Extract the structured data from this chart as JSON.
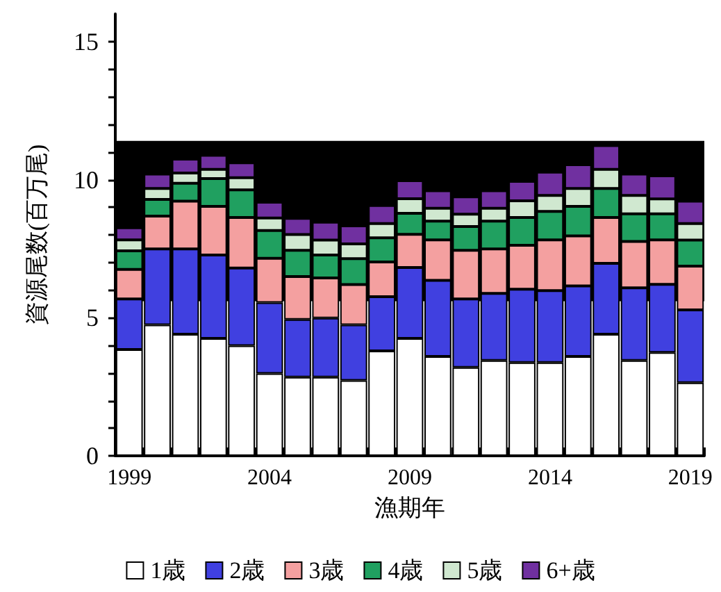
{
  "chart_data": {
    "type": "bar",
    "stacked": true,
    "xlabel": "漁期年",
    "ylabel": "資源尾数(百万尾)",
    "categories": [
      "1999",
      null,
      null,
      null,
      null,
      "2004",
      null,
      null,
      null,
      null,
      "2009",
      null,
      null,
      null,
      null,
      "2014",
      null,
      null,
      null,
      null,
      "2019"
    ],
    "series": [
      {
        "name": "1歳",
        "color": "#ffffff",
        "values": [
          3.85,
          4.74,
          4.4,
          4.25,
          3.99,
          2.98,
          2.85,
          2.85,
          2.73,
          3.8,
          4.25,
          3.6,
          3.2,
          3.45,
          3.38,
          3.38,
          3.6,
          4.4,
          3.45,
          3.74,
          2.65
        ]
      },
      {
        "name": "2歳",
        "color": "#4040e0",
        "values": [
          1.83,
          2.75,
          3.09,
          3.02,
          2.81,
          2.57,
          2.09,
          2.14,
          2.01,
          1.96,
          2.57,
          2.75,
          2.48,
          2.43,
          2.65,
          2.6,
          2.55,
          2.57,
          2.63,
          2.47,
          2.63
        ]
      },
      {
        "name": "3歳",
        "color": "#f4a0a0",
        "values": [
          1.07,
          1.19,
          1.73,
          1.76,
          1.83,
          1.6,
          1.55,
          1.45,
          1.46,
          1.26,
          1.2,
          1.47,
          1.76,
          1.61,
          1.59,
          1.84,
          1.81,
          1.66,
          1.68,
          1.61,
          1.59
        ]
      },
      {
        "name": "4歳",
        "color": "#20a060",
        "values": [
          0.67,
          0.6,
          0.65,
          1.01,
          1.0,
          1.01,
          0.95,
          0.83,
          0.94,
          0.87,
          0.76,
          0.68,
          0.86,
          1.01,
          1.01,
          1.03,
          1.07,
          1.05,
          1.0,
          0.94,
          0.94
        ]
      },
      {
        "name": "5歳",
        "color": "#d0e8d0",
        "values": [
          0.4,
          0.4,
          0.37,
          0.33,
          0.44,
          0.45,
          0.57,
          0.54,
          0.53,
          0.52,
          0.53,
          0.46,
          0.45,
          0.46,
          0.6,
          0.58,
          0.65,
          0.69,
          0.67,
          0.54,
          0.6
        ]
      },
      {
        "name": "6+歳",
        "color": "#7030a0",
        "values": [
          0.44,
          0.52,
          0.5,
          0.51,
          0.54,
          0.57,
          0.59,
          0.65,
          0.66,
          0.65,
          0.65,
          0.64,
          0.63,
          0.64,
          0.71,
          0.84,
          0.86,
          0.86,
          0.77,
          0.84,
          0.81
        ]
      }
    ],
    "ylim": [
      0,
      16
    ],
    "yticks": [
      0,
      {
        "value": 1,
        "label": null
      },
      {
        "value": 2,
        "label": null
      },
      {
        "value": 3,
        "label": null
      },
      {
        "value": 4,
        "label": null
      },
      5,
      {
        "value": 6,
        "label": null
      },
      {
        "value": 7,
        "label": null
      },
      {
        "value": 8,
        "label": null
      },
      {
        "value": 9,
        "label": null
      },
      10,
      {
        "value": 11,
        "label": null
      },
      {
        "value": 12,
        "label": null
      },
      {
        "value": 13,
        "label": null
      },
      {
        "value": 14,
        "label": null
      },
      15
    ],
    "bands": [
      {
        "axis": "y",
        "from": 5.6,
        "to": 11.4,
        "color": "#000000"
      }
    ],
    "grid": false,
    "legend": "bottom"
  }
}
